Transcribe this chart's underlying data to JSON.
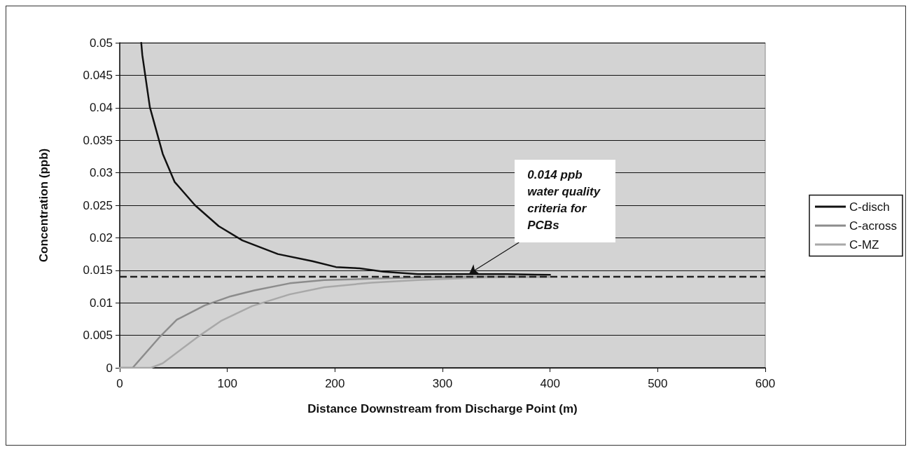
{
  "chart_data": {
    "type": "line",
    "xlabel": "Distance Downstream from Discharge Point (m)",
    "ylabel": "Concentration (ppb)",
    "xlim": [
      0,
      600
    ],
    "xticks": [
      0,
      100,
      200,
      300,
      400,
      500,
      600
    ],
    "ylim": [
      0,
      0.05
    ],
    "yticks": [
      0,
      0.005,
      0.01,
      0.015,
      0.02,
      0.025,
      0.03,
      0.035,
      0.04,
      0.045,
      0.05
    ],
    "grid": "y",
    "legend": "right",
    "marker": "none",
    "line_style": "solid",
    "series": [
      {
        "name": "C-disch",
        "color": "#111111",
        "x": [
          20,
          21,
          28,
          40,
          51,
          70,
          92,
          114,
          147,
          179,
          201,
          223,
          245,
          277,
          320,
          360,
          400
        ],
        "values": [
          0.05,
          0.0481,
          0.0401,
          0.0329,
          0.0286,
          0.025,
          0.0218,
          0.0196,
          0.0175,
          0.0164,
          0.0155,
          0.0153,
          0.0148,
          0.0144,
          0.0144,
          0.0144,
          0.0143
        ]
      },
      {
        "name": "C-across",
        "color": "#8c8c8c",
        "x": [
          0,
          12,
          38,
          53,
          79,
          103,
          125,
          158,
          190,
          234,
          277,
          340,
          400
        ],
        "values": [
          0,
          0,
          0.0049,
          0.0074,
          0.0096,
          0.011,
          0.0119,
          0.013,
          0.0135,
          0.0137,
          0.0139,
          0.014,
          0.014
        ]
      },
      {
        "name": "C-MZ",
        "color": "#a8a8a8",
        "x": [
          0,
          29,
          40,
          72,
          94,
          123,
          158,
          190,
          234,
          277,
          340,
          400
        ],
        "values": [
          0,
          0,
          0.0007,
          0.0047,
          0.0072,
          0.0095,
          0.0113,
          0.0124,
          0.0131,
          0.0135,
          0.0139,
          0.014
        ]
      }
    ],
    "ref_lines": [
      {
        "axis": "y",
        "value": 0.014,
        "color": "#222222",
        "line_style": "dashed"
      }
    ],
    "annotations": [
      {
        "text": "0.014 ppb\nwater quality\ncriteria for\nPCBs",
        "x": 325,
        "y": 0.0145
      }
    ]
  }
}
